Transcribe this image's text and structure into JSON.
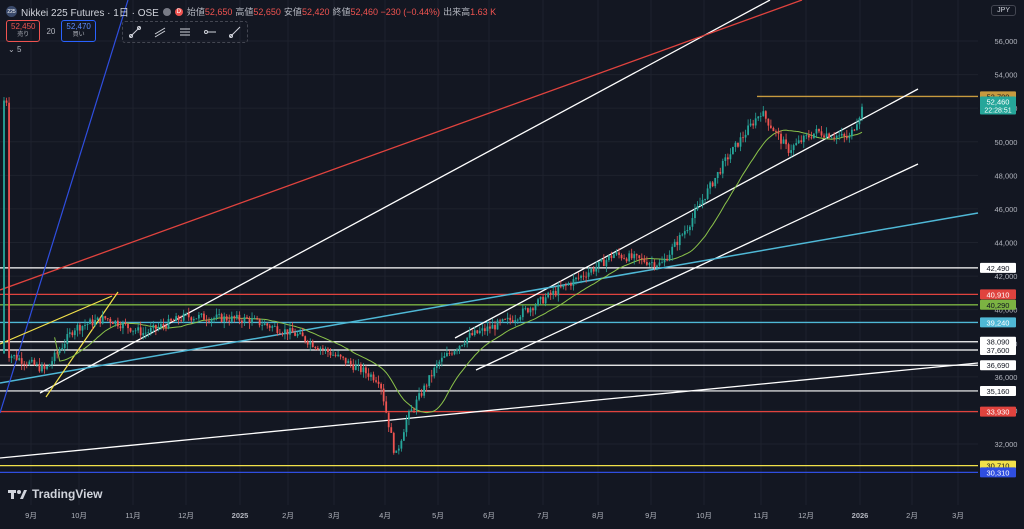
{
  "header": {
    "symbol_badge": "225",
    "title": "Nikkei 225 Futures · 1日 · OSE",
    "badge_d": "D",
    "ohlc": [
      {
        "key": "始値",
        "value": "52,650"
      },
      {
        "key": "高値",
        "value": "52,650"
      },
      {
        "key": "安値",
        "value": "52,420"
      },
      {
        "key": "終値",
        "value": "52,460 −230 (−0.44%)"
      },
      {
        "key": "出来高",
        "value": "1.63 K"
      }
    ],
    "sell_price": "52,450",
    "sell_label": "売り",
    "spread": "20",
    "buy_price": "52,470",
    "buy_label": "買い",
    "indicator_count": "5"
  },
  "currency": "JPY",
  "logo_text": "TradingView",
  "toolbar": [
    "trendline-tool-icon",
    "parallel-channel-icon",
    "pitchfork-icon",
    "horizontal-ray-icon",
    "ruler-icon"
  ],
  "colors": {
    "bg": "#131722",
    "up": "#26a69a",
    "down": "#ef5350",
    "ma": "#8bc34a",
    "white": "#ffffff",
    "red": "#e0433e",
    "cyan": "#4fb8d6",
    "yellow": "#f2e14a",
    "blue": "#2f4ee0",
    "green": "#7cb342",
    "gold": "#c79a3f"
  },
  "chart_data": {
    "type": "candlestick",
    "interval": "1日",
    "y_axis_ticks": [
      "56,000",
      "54,000",
      "52,000",
      "50,000",
      "48,000",
      "46,000",
      "44,000",
      "42,000",
      "40,000",
      "38,000",
      "36,000",
      "34,000",
      "32,000"
    ],
    "y_range": [
      30000,
      57500
    ],
    "x_axis_ticks": [
      "9月",
      "10月",
      "11月",
      "12月",
      "2025",
      "2月",
      "3月",
      "4月",
      "5月",
      "6月",
      "7月",
      "8月",
      "9月",
      "10月",
      "11月",
      "12月",
      "2026",
      "2月",
      "3月"
    ],
    "monthly_closes": [
      {
        "month": "2024-09",
        "close": 37600
      },
      {
        "month": "2024-10",
        "close": 38800
      },
      {
        "month": "2024-11",
        "close": 38200
      },
      {
        "month": "2024-12",
        "close": 39900
      },
      {
        "month": "2025-01",
        "close": 39400
      },
      {
        "month": "2025-02",
        "close": 37200
      },
      {
        "month": "2025-03",
        "close": 35600
      },
      {
        "month": "2025-04",
        "close": 36100
      },
      {
        "month": "2025-05",
        "close": 37900
      },
      {
        "month": "2025-06",
        "close": 40300
      },
      {
        "month": "2025-07",
        "close": 41000
      },
      {
        "month": "2025-08",
        "close": 42800
      },
      {
        "month": "2025-09",
        "close": 44900
      },
      {
        "month": "2025-10",
        "close": 52300
      },
      {
        "month": "2025-11",
        "close": 50100
      },
      {
        "month": "2025-12",
        "close": 50400
      },
      {
        "month": "2026-01",
        "close": 52460
      }
    ],
    "last_price": {
      "value": "52,460",
      "countdown": "22:28:51"
    },
    "horizontal_levels": [
      {
        "value": "52,700",
        "color": "gold"
      },
      {
        "value": "42,490",
        "color": "white"
      },
      {
        "value": "40,910",
        "color": "red"
      },
      {
        "value": "40,290",
        "color": "green"
      },
      {
        "value": "39,240",
        "color": "cyan"
      },
      {
        "value": "38,090",
        "color": "white"
      },
      {
        "value": "37,600",
        "color": "white"
      },
      {
        "value": "36,690",
        "color": "white"
      },
      {
        "value": "35,160",
        "color": "white"
      },
      {
        "value": "33,930",
        "color": "red"
      },
      {
        "value": "30,710",
        "color": "yellow"
      },
      {
        "value": "30,310",
        "color": "blue"
      }
    ]
  }
}
